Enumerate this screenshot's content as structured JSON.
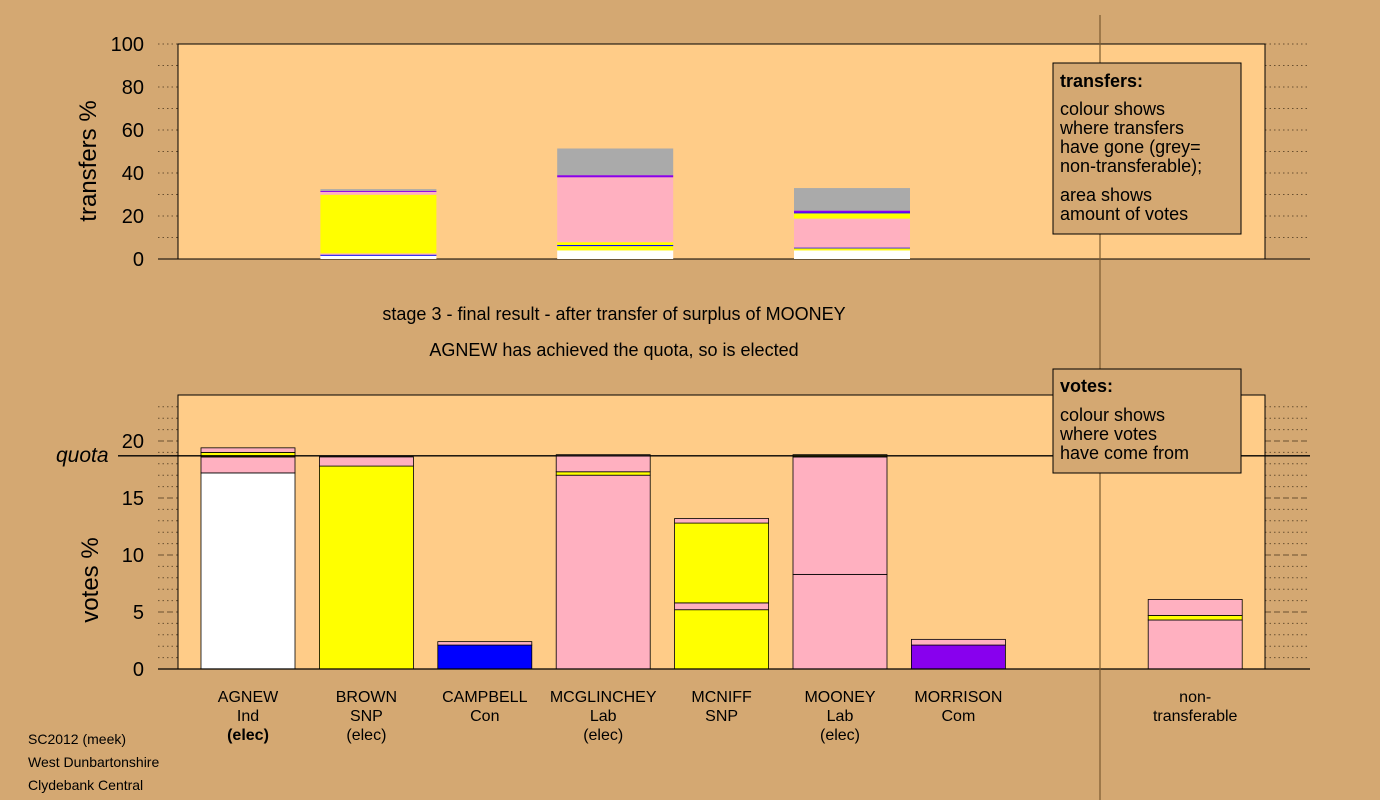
{
  "colors": {
    "page_bg": "#d4a872",
    "plot_bg": "#ffcc88",
    "white": "#ffffff",
    "yellow": "#ffff00",
    "blue": "#0000ff",
    "pink": "#ffb0c0",
    "purple": "#8800ee",
    "grey": "#aaaaaa"
  },
  "titles": {
    "line1": "stage 3 - final result - after transfer of surplus of MOONEY",
    "line2": "AGNEW has achieved the quota, so is elected"
  },
  "footer": [
    "SC2012 (meek)",
    "West Dunbartonshire",
    "Clydebank Central"
  ],
  "legends": {
    "transfers": {
      "title": "transfers:",
      "lines1": [
        "colour shows",
        "where transfers",
        "have gone (grey=",
        "non-transferable);"
      ],
      "lines2": [
        "area shows",
        "amount of votes"
      ]
    },
    "votes": {
      "title": "votes:",
      "lines": [
        "colour shows",
        "where votes",
        "have come from"
      ]
    }
  },
  "chart_data": [
    {
      "type": "bar",
      "stacked": true,
      "ylabel": "transfers %",
      "ylim": [
        0,
        100
      ],
      "yticks": [
        0,
        20,
        40,
        60,
        80,
        100
      ],
      "grid": "dotted",
      "bars": [
        {
          "slot": 1,
          "segments": [
            {
              "color": "white",
              "value": 1.5
            },
            {
              "color": "blue",
              "value": 0.5
            },
            {
              "color": "pink",
              "value": 0.6
            },
            {
              "color": "yellow",
              "value": 27.3
            },
            {
              "color": "pink",
              "value": 1.3
            },
            {
              "color": "purple",
              "value": 0.5
            },
            {
              "color": "grey",
              "value": 0.8
            }
          ]
        },
        {
          "slot": 3,
          "segments": [
            {
              "color": "white",
              "value": 4.0
            },
            {
              "color": "yellow",
              "value": 2.0
            },
            {
              "color": "blue",
              "value": 0.5
            },
            {
              "color": "yellow",
              "value": 1.3
            },
            {
              "color": "pink",
              "value": 30.2
            },
            {
              "color": "purple",
              "value": 1.0
            },
            {
              "color": "grey",
              "value": 12.4
            }
          ]
        },
        {
          "slot": 5,
          "segments": [
            {
              "color": "white",
              "value": 4.0
            },
            {
              "color": "yellow",
              "value": 1.0
            },
            {
              "color": "blue",
              "value": 0.3
            },
            {
              "color": "pink",
              "value": 13.5
            },
            {
              "color": "yellow",
              "value": 2.5
            },
            {
              "color": "blue",
              "value": 0.3
            },
            {
              "color": "purple",
              "value": 0.9
            },
            {
              "color": "grey",
              "value": 10.5
            }
          ]
        }
      ]
    },
    {
      "type": "bar",
      "stacked": true,
      "ylabel": "votes %",
      "ylim": [
        0,
        20
      ],
      "yticks": [
        0,
        5,
        10,
        15,
        20
      ],
      "quota": 18.7,
      "quota_label": "quota",
      "grid": "dashed",
      "categories": [
        {
          "name": "AGNEW",
          "party": "Ind",
          "status": "(elec)",
          "status_bold": true
        },
        {
          "name": "BROWN",
          "party": "SNP",
          "status": "(elec)",
          "status_bold": false
        },
        {
          "name": "CAMPBELL",
          "party": "Con",
          "status": "",
          "status_bold": false
        },
        {
          "name": "MCGLINCHEY",
          "party": "Lab",
          "status": "(elec)",
          "status_bold": false
        },
        {
          "name": "MCNIFF",
          "party": "SNP",
          "status": "",
          "status_bold": false
        },
        {
          "name": "MOONEY",
          "party": "Lab",
          "status": "(elec)",
          "status_bold": false
        },
        {
          "name": "MORRISON",
          "party": "Com",
          "status": "",
          "status_bold": false
        },
        {
          "name": "",
          "party": "",
          "status": "",
          "status_bold": false
        },
        {
          "name": "non-",
          "party": "transferable",
          "status": "",
          "status_bold": false
        }
      ],
      "bars": [
        {
          "slot": 0,
          "segments": [
            {
              "color": "white",
              "value": 17.2
            },
            {
              "color": "pink",
              "value": 1.4
            },
            {
              "color": "yellow",
              "value": 0.4
            },
            {
              "color": "pink",
              "value": 0.4
            }
          ]
        },
        {
          "slot": 1,
          "segments": [
            {
              "color": "yellow",
              "value": 17.8
            },
            {
              "color": "pink",
              "value": 0.8
            }
          ]
        },
        {
          "slot": 2,
          "segments": [
            {
              "color": "blue",
              "value": 2.1
            },
            {
              "color": "pink",
              "value": 0.3
            }
          ]
        },
        {
          "slot": 3,
          "segments": [
            {
              "color": "pink",
              "value": 17.0
            },
            {
              "color": "yellow",
              "value": 0.3
            },
            {
              "color": "pink",
              "value": 1.5
            }
          ]
        },
        {
          "slot": 4,
          "segments": [
            {
              "color": "yellow",
              "value": 5.2
            },
            {
              "color": "pink",
              "value": 0.6
            },
            {
              "color": "yellow",
              "value": 7.0
            },
            {
              "color": "pink",
              "value": 0.4
            }
          ]
        },
        {
          "slot": 5,
          "segments": [
            {
              "color": "pink",
              "value": 8.3
            },
            {
              "color": "pink",
              "value": 10.3
            },
            {
              "color": "yellow",
              "value": 0.2
            }
          ]
        },
        {
          "slot": 6,
          "segments": [
            {
              "color": "purple",
              "value": 2.1
            },
            {
              "color": "pink",
              "value": 0.5
            }
          ]
        },
        {
          "slot": 8,
          "segments": [
            {
              "color": "pink",
              "value": 4.3
            },
            {
              "color": "yellow",
              "value": 0.4
            },
            {
              "color": "pink",
              "value": 1.4
            }
          ]
        }
      ]
    }
  ]
}
